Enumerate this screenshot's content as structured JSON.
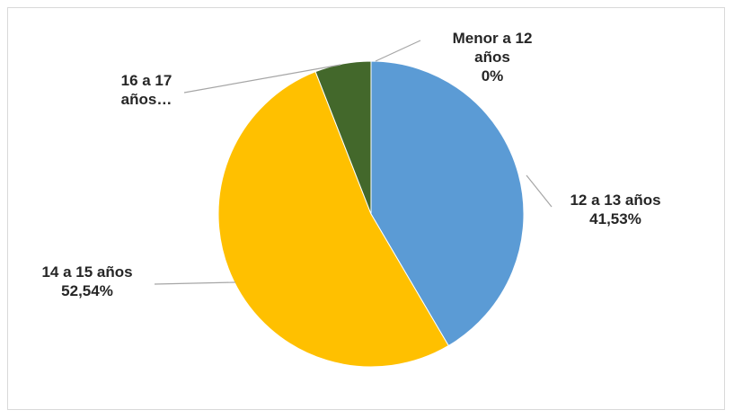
{
  "chart_data": {
    "type": "pie",
    "categories": [
      "Menor a 12 años",
      "12 a 13 años",
      "14 a 15 años",
      "16 a 17 años"
    ],
    "values": [
      0,
      41.53,
      52.54,
      5.93
    ],
    "colors": [
      "#5B9BD5",
      "#5B9BD5",
      "#FFC000",
      "#43682B"
    ],
    "start_angle_deg": 0,
    "direction": "clockwise",
    "legend": "none",
    "data_labels": [
      {
        "category": "Menor a 12 años",
        "lines": [
          "Menor a 12",
          "años",
          "0%"
        ]
      },
      {
        "category": "12 a 13 años",
        "lines": [
          "12 a 13 años",
          "41,53%"
        ]
      },
      {
        "category": "14 a 15 años",
        "lines": [
          "14 a 15 años",
          "52,54%"
        ]
      },
      {
        "category": "16 a 17 años",
        "lines": [
          "16 a 17",
          "años…"
        ]
      }
    ]
  }
}
